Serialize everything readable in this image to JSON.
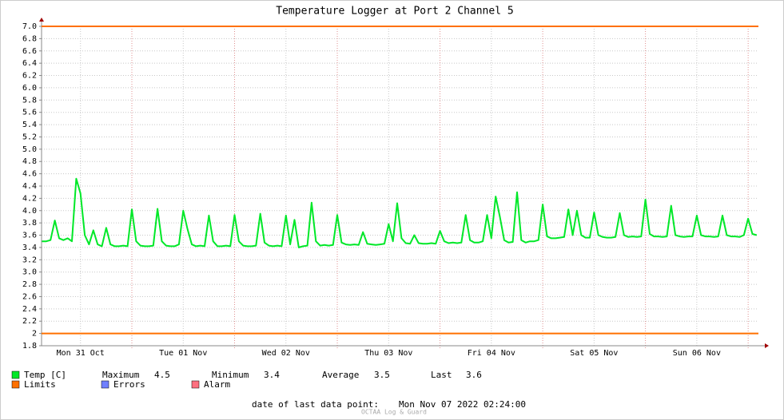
{
  "chart_data": {
    "type": "line",
    "title": "Temperature Logger at Port 2 Channel 5",
    "series": [
      {
        "name": "Temp [C]",
        "color": "#00e828",
        "x": [
          3,
          4,
          5,
          6,
          7,
          8,
          9,
          10,
          11,
          12,
          13,
          14,
          15,
          16,
          17,
          18,
          19,
          20,
          21,
          22,
          23,
          24,
          25,
          26,
          27,
          28,
          29,
          30,
          31,
          32,
          33,
          34,
          35,
          36,
          37,
          38,
          39,
          40,
          41,
          42,
          43,
          44,
          45,
          46,
          47,
          48,
          49,
          50,
          51,
          52,
          53,
          54,
          55,
          56,
          57,
          58,
          59,
          60,
          61,
          62,
          63,
          64,
          65,
          66,
          67,
          68,
          69,
          70,
          71,
          72,
          73,
          74,
          75,
          76,
          77,
          78,
          79,
          80,
          81,
          82,
          83,
          84,
          85,
          86,
          87,
          88,
          89,
          90,
          91,
          92,
          93,
          94,
          95,
          96,
          97,
          98,
          99,
          100,
          101,
          102,
          103,
          104,
          105,
          106,
          107,
          108,
          109,
          110,
          111,
          112,
          113,
          114,
          115,
          116,
          117,
          118,
          119,
          120,
          121,
          122,
          123,
          124,
          125,
          126,
          127,
          128,
          129,
          130,
          131,
          132,
          133,
          134,
          135,
          136,
          137,
          138,
          139,
          140,
          141,
          142,
          143,
          144,
          145,
          146,
          147,
          148,
          149,
          150,
          151,
          152,
          153,
          154,
          155,
          156,
          157,
          158,
          159,
          160,
          161,
          162,
          163,
          164,
          165,
          166,
          167,
          168,
          169,
          170
        ],
        "values": [
          3.5,
          3.5,
          3.52,
          3.84,
          3.55,
          3.52,
          3.55,
          3.5,
          4.52,
          4.28,
          3.6,
          3.45,
          3.68,
          3.45,
          3.42,
          3.72,
          3.45,
          3.42,
          3.42,
          3.43,
          3.42,
          4.02,
          3.5,
          3.43,
          3.42,
          3.42,
          3.43,
          4.03,
          3.5,
          3.43,
          3.42,
          3.42,
          3.45,
          4.0,
          3.7,
          3.45,
          3.42,
          3.43,
          3.42,
          3.92,
          3.5,
          3.42,
          3.42,
          3.43,
          3.42,
          3.93,
          3.5,
          3.43,
          3.42,
          3.42,
          3.43,
          3.95,
          3.48,
          3.43,
          3.42,
          3.43,
          3.42,
          3.92,
          3.45,
          3.85,
          3.4,
          3.42,
          3.43,
          4.13,
          3.5,
          3.43,
          3.44,
          3.43,
          3.44,
          3.93,
          3.48,
          3.45,
          3.44,
          3.45,
          3.44,
          3.65,
          3.46,
          3.45,
          3.44,
          3.45,
          3.46,
          3.78,
          3.5,
          4.12,
          3.55,
          3.47,
          3.46,
          3.6,
          3.47,
          3.46,
          3.46,
          3.47,
          3.46,
          3.67,
          3.5,
          3.47,
          3.48,
          3.47,
          3.48,
          3.93,
          3.52,
          3.48,
          3.48,
          3.5,
          3.93,
          3.55,
          4.23,
          3.9,
          3.52,
          3.48,
          3.49,
          4.3,
          3.52,
          3.48,
          3.5,
          3.5,
          3.52,
          4.1,
          3.58,
          3.55,
          3.55,
          3.56,
          3.57,
          4.02,
          3.6,
          4.0,
          3.6,
          3.56,
          3.56,
          3.97,
          3.6,
          3.57,
          3.56,
          3.56,
          3.57,
          3.96,
          3.6,
          3.57,
          3.58,
          3.57,
          3.58,
          4.18,
          3.62,
          3.58,
          3.58,
          3.57,
          3.58,
          4.08,
          3.6,
          3.58,
          3.57,
          3.58,
          3.58,
          3.92,
          3.6,
          3.58,
          3.58,
          3.57,
          3.58,
          3.92,
          3.6,
          3.58,
          3.58,
          3.57,
          3.6,
          3.87,
          3.62,
          3.6
        ]
      }
    ],
    "limits": {
      "name": "Limits",
      "color": "#ff7000",
      "values": [
        7.0,
        2.0
      ]
    },
    "legend_extra": [
      {
        "name": "Errors",
        "color": "#7080ff"
      },
      {
        "name": "Alarm",
        "color": "#ff7080"
      }
    ],
    "stats": [
      {
        "label": "Maximum",
        "value": 4.5
      },
      {
        "label": "Minimum",
        "value": 3.4
      },
      {
        "label": "Average",
        "value": 3.5
      },
      {
        "label": "Last",
        "value": 3.6
      }
    ],
    "footer_label": "date of last data point:",
    "footer_value": "Mon Nov 07 2022 02:24:00",
    "watermark": "OCTAA Log & Guard",
    "xlim": [
      2.9,
      170.4
    ],
    "xticks": [
      {
        "value": 12,
        "label": "Mon 31 Oct"
      },
      {
        "value": 36,
        "label": "Tue 01 Nov"
      },
      {
        "value": 60,
        "label": "Wed 02 Nov"
      },
      {
        "value": 84,
        "label": "Thu 03 Nov"
      },
      {
        "value": 108,
        "label": "Fri 04 Nov"
      },
      {
        "value": 132,
        "label": "Sat 05 Nov"
      },
      {
        "value": 156,
        "label": "Sun 06 Nov"
      }
    ],
    "xgrid_major": [
      24,
      48,
      72,
      96,
      120,
      144,
      168
    ],
    "ylim": [
      1.8,
      7.0
    ],
    "yticks": [
      {
        "value": 1.8,
        "label": "1.8"
      },
      2.0,
      2.2,
      2.4,
      2.6,
      2.8,
      {
        "value": 3.0,
        "label": "3.0"
      },
      3.2,
      3.4,
      3.6,
      3.8,
      {
        "value": 4.0,
        "label": "4.0"
      },
      4.2,
      4.4,
      4.6,
      4.8,
      {
        "value": 5.0,
        "label": "5.0"
      },
      5.2,
      5.4,
      5.6,
      5.8,
      {
        "value": 6.0,
        "label": "6.0"
      },
      6.2,
      6.4,
      6.6,
      6.8,
      {
        "value": 7.0,
        "label": "7.0"
      }
    ],
    "grid": true
  }
}
